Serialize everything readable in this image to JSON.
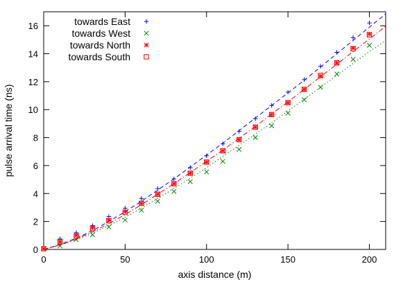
{
  "chart_data": {
    "type": "scatter",
    "xlabel": "axis distance (m)",
    "ylabel": "pulse arrival time (ns)",
    "xlim": [
      0,
      210
    ],
    "ylim": [
      0,
      17
    ],
    "xticks": [
      0,
      50,
      100,
      150,
      200
    ],
    "yticks": [
      0,
      2,
      4,
      6,
      8,
      10,
      12,
      14,
      16
    ],
    "grid": false,
    "legend_position": "top-left",
    "series": [
      {
        "name": "towards East",
        "color": "#0000ff",
        "marker": "plus",
        "line_style": "dashed",
        "x": [
          0,
          10,
          20,
          30,
          40,
          50,
          60,
          70,
          80,
          90,
          100,
          110,
          120,
          130,
          140,
          150,
          160,
          170,
          180,
          190,
          200
        ],
        "y": [
          0.05,
          0.75,
          1.2,
          1.7,
          2.35,
          2.95,
          3.65,
          4.35,
          5.05,
          5.85,
          6.7,
          7.55,
          8.45,
          9.35,
          10.3,
          11.25,
          12.15,
          13.1,
          14.1,
          15.15,
          16.2
        ],
        "fit_x": [
          0,
          10,
          20,
          30,
          40,
          50,
          60,
          70,
          80,
          90,
          100,
          110,
          120,
          130,
          140,
          150,
          160,
          170,
          180,
          190,
          200,
          210
        ],
        "fit_y": [
          0,
          0.35,
          0.8,
          1.35,
          2.0,
          2.7,
          3.45,
          4.25,
          5.05,
          5.9,
          6.75,
          7.6,
          8.5,
          9.4,
          10.3,
          11.2,
          12.1,
          13.05,
          14.0,
          14.95,
          15.9,
          16.85
        ]
      },
      {
        "name": "towards West",
        "color": "#008000",
        "marker": "cross",
        "line_style": "dotted",
        "x": [
          0,
          10,
          20,
          30,
          40,
          50,
          60,
          70,
          80,
          90,
          100,
          110,
          120,
          130,
          140,
          150,
          160,
          170,
          180,
          190,
          200
        ],
        "y": [
          0.05,
          0.25,
          0.7,
          1.05,
          1.6,
          2.1,
          2.8,
          3.45,
          4.15,
          4.85,
          5.55,
          6.3,
          7.15,
          8.0,
          8.85,
          9.75,
          10.7,
          11.6,
          12.55,
          13.6,
          14.6
        ],
        "fit_x": [
          0,
          10,
          20,
          30,
          40,
          50,
          60,
          70,
          80,
          90,
          100,
          110,
          120,
          130,
          140,
          150,
          160,
          170,
          180,
          190,
          200,
          210
        ],
        "fit_y": [
          0,
          0.3,
          0.7,
          1.15,
          1.7,
          2.3,
          2.95,
          3.65,
          4.35,
          5.1,
          5.85,
          6.65,
          7.45,
          8.25,
          9.05,
          9.9,
          10.75,
          11.6,
          12.45,
          13.3,
          14.15,
          14.95
        ]
      },
      {
        "name": "towards North",
        "color": "#ff0000",
        "marker": "asterisk",
        "line_style": "dash-dot",
        "x": [
          0,
          10,
          20,
          30,
          40,
          50,
          60,
          70,
          80,
          90,
          100,
          110,
          120,
          130,
          140,
          150,
          160,
          170,
          180,
          190,
          200
        ],
        "y": [
          0.05,
          0.55,
          1.0,
          1.55,
          2.1,
          2.7,
          3.3,
          3.95,
          4.7,
          5.45,
          6.25,
          7.05,
          7.85,
          8.75,
          9.65,
          10.5,
          11.45,
          12.4,
          13.35,
          14.4,
          15.4
        ],
        "fit_x": [
          0,
          10,
          20,
          30,
          40,
          50,
          60,
          70,
          80,
          90,
          100,
          110,
          120,
          130,
          140,
          150,
          160,
          170,
          180,
          190,
          200,
          210
        ],
        "fit_y": [
          0,
          0.32,
          0.75,
          1.25,
          1.85,
          2.5,
          3.2,
          3.95,
          4.7,
          5.5,
          6.3,
          7.1,
          7.95,
          8.8,
          9.7,
          10.55,
          11.45,
          12.35,
          13.25,
          14.15,
          15.05,
          15.95
        ]
      },
      {
        "name": "towards South",
        "color": "#ff0000",
        "marker": "square",
        "line_style": "none",
        "x": [
          0,
          10,
          20,
          30,
          40,
          50,
          60,
          70,
          80,
          90,
          100,
          110,
          120,
          130,
          140,
          150,
          160,
          170,
          180,
          190,
          200
        ],
        "y": [
          0.05,
          0.55,
          0.95,
          1.5,
          2.05,
          2.65,
          3.3,
          3.95,
          4.7,
          5.45,
          6.25,
          7.05,
          7.85,
          8.75,
          9.65,
          10.5,
          11.45,
          12.45,
          13.35,
          14.35,
          15.35
        ]
      }
    ]
  }
}
